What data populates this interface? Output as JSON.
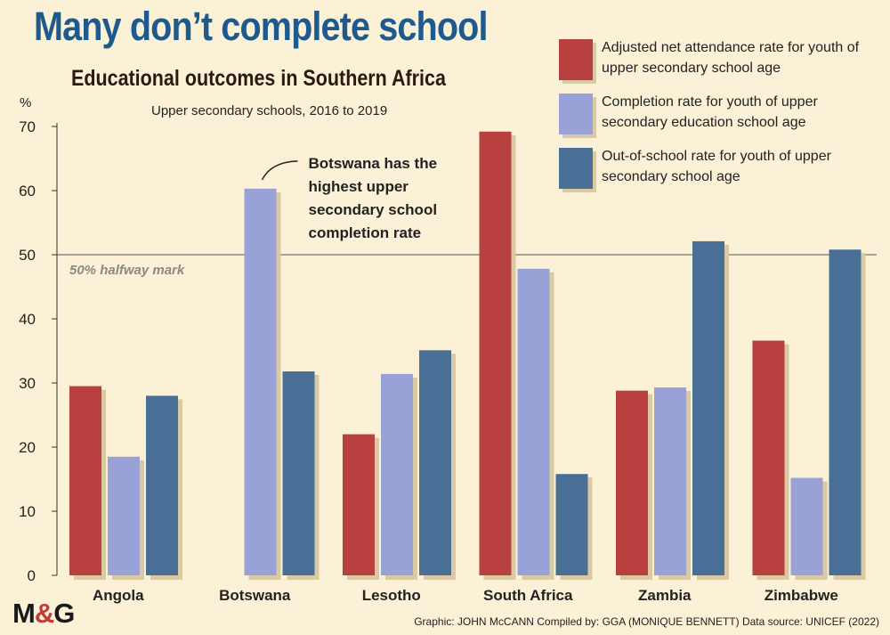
{
  "header": {
    "title": "Many don’t complete school",
    "subtitle": "Educational outcomes in Southern Africa",
    "period": "Upper secondary schools, 2016 to 2019"
  },
  "legend": {
    "items": [
      {
        "label": "Adjusted net attendance rate for youth of upper secondary school age",
        "color": "#b8413f"
      },
      {
        "label": "Completion rate for youth of upper secondary education school age",
        "color": "#98a2d6"
      },
      {
        "label": "Out-of-school rate for youth of upper secondary school age",
        "color": "#4a6f96"
      }
    ]
  },
  "footer": {
    "logo_main": "M",
    "logo_amp": "&",
    "logo_end": "G",
    "credit": "Graphic: JOHN McCANN  Compiled by: GGA (MONIQUE BENNETT)  Data source: UNICEF (2022)"
  },
  "chart_data": {
    "type": "bar",
    "categories": [
      "Angola",
      "Botswana",
      "Lesotho",
      "South Africa",
      "Zambia",
      "Zimbabwe"
    ],
    "series": [
      {
        "name": "Adjusted net attendance rate for youth of upper secondary school age",
        "values": [
          29.5,
          null,
          22,
          69.2,
          28.8,
          36.6
        ]
      },
      {
        "name": "Completion rate for youth of upper secondary education school age",
        "values": [
          18.5,
          60.3,
          31.4,
          47.8,
          29.3,
          15.2
        ]
      },
      {
        "name": "Out-of-school rate for youth of upper secondary school age",
        "values": [
          28,
          31.8,
          35.1,
          15.8,
          52.1,
          50.8
        ]
      }
    ],
    "ylabel": "%",
    "ylim": [
      0,
      70
    ],
    "yticks": [
      0,
      10,
      20,
      30,
      40,
      50,
      60,
      70
    ],
    "reference_line": {
      "value": 50,
      "label": "50% halfway mark"
    },
    "annotation": {
      "category": "Botswana",
      "lines": [
        "Botswana has the",
        "highest upper",
        "secondary school",
        "completion rate"
      ]
    },
    "colors": [
      "#b8413f",
      "#98a2d6",
      "#4a6f96"
    ],
    "grid": false,
    "legend_position": "top-right"
  }
}
